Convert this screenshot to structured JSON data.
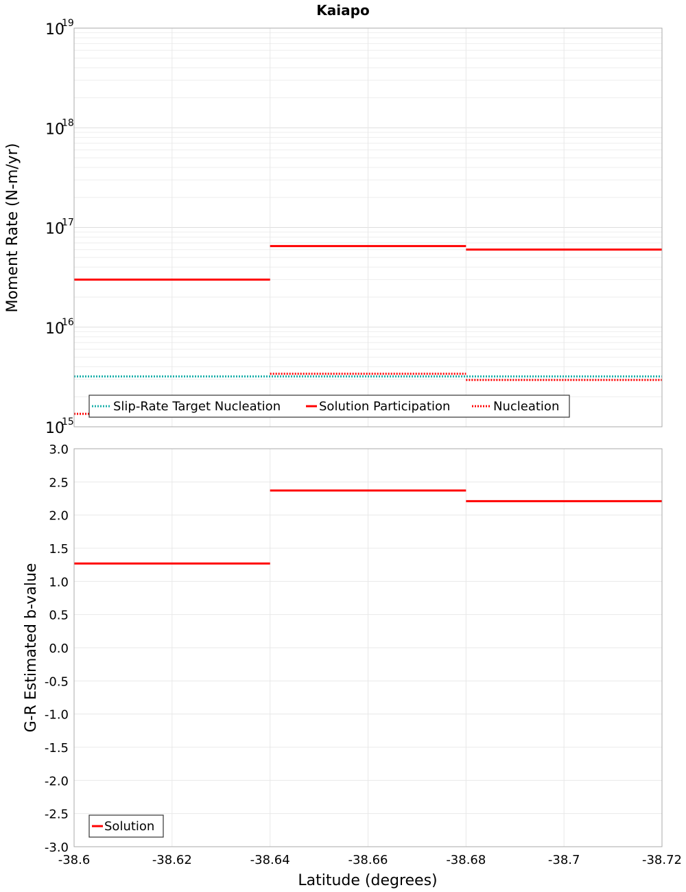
{
  "chart_data": [
    {
      "id": "moment",
      "type": "line",
      "title": "Kaiapo",
      "xlabel": "Latitude (degrees)",
      "ylabel": "Moment Rate (N-m/yr)",
      "yscale": "log",
      "xlim": [
        -38.6,
        -38.72
      ],
      "ylim": [
        1000000000000000.0,
        1e+19
      ],
      "y_ticks": [
        {
          "base": "10",
          "exp": "15",
          "value": 1000000000000000.0
        },
        {
          "base": "10",
          "exp": "16",
          "value": 1e+16
        },
        {
          "base": "10",
          "exp": "17",
          "value": 1e+17
        },
        {
          "base": "10",
          "exp": "18",
          "value": 1e+18
        },
        {
          "base": "10",
          "exp": "19",
          "value": 1e+19
        }
      ],
      "x_gridlines": [
        -38.62,
        -38.64,
        -38.66,
        -38.68,
        -38.7
      ],
      "series": [
        {
          "name": "Slip-Rate Target Nucleation",
          "color": "#1aafaa",
          "style": "dotted",
          "segments": [
            {
              "x0": -38.6,
              "x1": -38.72,
              "y": 3200000000000000.0
            }
          ]
        },
        {
          "name": "Solution Participation",
          "color": "#ff0000",
          "style": "solid",
          "segments": [
            {
              "x0": -38.6,
              "x1": -38.64,
              "y": 3e+16
            },
            {
              "x0": -38.64,
              "x1": -38.68,
              "y": 6.5e+16
            },
            {
              "x0": -38.68,
              "x1": -38.72,
              "y": 6e+16
            }
          ]
        },
        {
          "name": "Nucleation",
          "color": "#ff0000",
          "style": "dotted",
          "segments": [
            {
              "x0": -38.6,
              "x1": -38.64,
              "y": 1350000000000000.0
            },
            {
              "x0": -38.64,
              "x1": -38.68,
              "y": 3400000000000000.0
            },
            {
              "x0": -38.68,
              "x1": -38.72,
              "y": 2950000000000000.0
            }
          ]
        }
      ],
      "legend": [
        "Slip-Rate Target Nucleation",
        "Solution Participation",
        "Nucleation"
      ]
    },
    {
      "id": "bvalue",
      "type": "line",
      "xlabel": "Latitude (degrees)",
      "ylabel": "G-R Estimated b-value",
      "xlim": [
        -38.6,
        -38.72
      ],
      "ylim": [
        -3.0,
        3.0
      ],
      "y_ticks": [
        "3.0",
        "2.5",
        "2.0",
        "1.5",
        "1.0",
        "0.5",
        "0.0",
        "-0.5",
        "-1.0",
        "-1.5",
        "-2.0",
        "-2.5",
        "-3.0"
      ],
      "x_ticks": [
        "-38.6",
        "-38.62",
        "-38.64",
        "-38.66",
        "-38.68",
        "-38.7",
        "-38.72"
      ],
      "series": [
        {
          "name": "Solution",
          "color": "#ff0000",
          "style": "solid",
          "segments": [
            {
              "x0": -38.6,
              "x1": -38.64,
              "y": 1.27
            },
            {
              "x0": -38.64,
              "x1": -38.68,
              "y": 2.37
            },
            {
              "x0": -38.68,
              "x1": -38.72,
              "y": 2.21
            }
          ]
        }
      ],
      "legend": [
        "Solution"
      ]
    }
  ]
}
